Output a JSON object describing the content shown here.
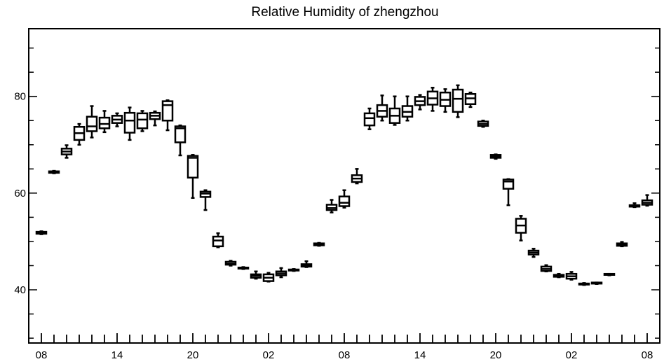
{
  "chart_data": {
    "type": "box",
    "title": "Relative Humidity of zhengzhou",
    "xlabel": "",
    "ylabel": "",
    "ylim": [
      29,
      94
    ],
    "yticks": [
      40,
      60,
      80
    ],
    "x_tick_labels": [
      "08",
      "14",
      "20",
      "02",
      "08",
      "14",
      "20",
      "02",
      "08"
    ],
    "x_tick_hour_index": [
      0,
      6,
      12,
      18,
      24,
      30,
      36,
      42,
      48
    ],
    "x_range_index": [
      -1,
      49
    ],
    "grid": false,
    "box_color": "#000000",
    "boxes": [
      {
        "x": 0,
        "whisker_low": 51.5,
        "q1": 51.6,
        "median": 51.8,
        "q3": 52.0,
        "whisker_high": 52.1
      },
      {
        "x": 1,
        "whisker_low": 64.1,
        "q1": 64.2,
        "median": 64.3,
        "q3": 64.5,
        "whisker_high": 64.6
      },
      {
        "x": 2,
        "whisker_low": 67.3,
        "q1": 68.0,
        "median": 68.6,
        "q3": 69.2,
        "whisker_high": 69.9
      },
      {
        "x": 3,
        "whisker_low": 70.0,
        "q1": 71.0,
        "median": 72.4,
        "q3": 73.7,
        "whisker_high": 74.3
      },
      {
        "x": 4,
        "whisker_low": 71.5,
        "q1": 72.8,
        "median": 73.8,
        "q3": 75.8,
        "whisker_high": 78.0
      },
      {
        "x": 5,
        "whisker_low": 72.6,
        "q1": 73.4,
        "median": 74.3,
        "q3": 75.6,
        "whisker_high": 77.0
      },
      {
        "x": 6,
        "whisker_low": 73.8,
        "q1": 74.5,
        "median": 75.2,
        "q3": 76.0,
        "whisker_high": 76.5
      },
      {
        "x": 7,
        "whisker_low": 71.0,
        "q1": 72.5,
        "median": 75.0,
        "q3": 76.6,
        "whisker_high": 77.7
      },
      {
        "x": 8,
        "whisker_low": 72.8,
        "q1": 73.4,
        "median": 75.2,
        "q3": 76.5,
        "whisker_high": 77.0
      },
      {
        "x": 9,
        "whisker_low": 74.0,
        "q1": 75.3,
        "median": 76.0,
        "q3": 76.6,
        "whisker_high": 76.9
      },
      {
        "x": 10,
        "whisker_low": 73.0,
        "q1": 75.0,
        "median": 78.2,
        "q3": 79.0,
        "whisker_high": 79.2
      },
      {
        "x": 11,
        "whisker_low": 67.8,
        "q1": 70.5,
        "median": 73.4,
        "q3": 73.8,
        "whisker_high": 74.0
      },
      {
        "x": 12,
        "whisker_low": 59.0,
        "q1": 63.2,
        "median": 67.3,
        "q3": 67.7,
        "whisker_high": 67.9
      },
      {
        "x": 13,
        "whisker_low": 56.5,
        "q1": 59.2,
        "median": 59.9,
        "q3": 60.3,
        "whisker_high": 60.6
      },
      {
        "x": 14,
        "whisker_low": 48.8,
        "q1": 49.0,
        "median": 50.2,
        "q3": 51.0,
        "whisker_high": 51.7
      },
      {
        "x": 15,
        "whisker_low": 45.0,
        "q1": 45.2,
        "median": 45.4,
        "q3": 45.8,
        "whisker_high": 46.0
      },
      {
        "x": 16,
        "whisker_low": 44.3,
        "q1": 44.4,
        "median": 44.5,
        "q3": 44.6,
        "whisker_high": 44.7
      },
      {
        "x": 17,
        "whisker_low": 42.3,
        "q1": 42.5,
        "median": 42.9,
        "q3": 43.2,
        "whisker_high": 43.8
      },
      {
        "x": 18,
        "whisker_low": 41.7,
        "q1": 41.8,
        "median": 42.5,
        "q3": 43.2,
        "whisker_high": 43.5
      },
      {
        "x": 19,
        "whisker_low": 42.6,
        "q1": 43.0,
        "median": 43.4,
        "q3": 43.8,
        "whisker_high": 44.5
      },
      {
        "x": 20,
        "whisker_low": 43.9,
        "q1": 44.0,
        "median": 44.1,
        "q3": 44.2,
        "whisker_high": 44.3
      },
      {
        "x": 21,
        "whisker_low": 44.7,
        "q1": 44.8,
        "median": 45.0,
        "q3": 45.3,
        "whisker_high": 45.9
      },
      {
        "x": 22,
        "whisker_low": 49.1,
        "q1": 49.2,
        "median": 49.4,
        "q3": 49.6,
        "whisker_high": 49.7
      },
      {
        "x": 23,
        "whisker_low": 56.0,
        "q1": 56.5,
        "median": 56.9,
        "q3": 57.6,
        "whisker_high": 58.6
      },
      {
        "x": 24,
        "whisker_low": 57.0,
        "q1": 57.3,
        "median": 58.0,
        "q3": 59.3,
        "whisker_high": 60.6
      },
      {
        "x": 25,
        "whisker_low": 62.0,
        "q1": 62.3,
        "median": 63.0,
        "q3": 63.7,
        "whisker_high": 65.0
      },
      {
        "x": 26,
        "whisker_low": 73.2,
        "q1": 74.0,
        "median": 75.5,
        "q3": 76.5,
        "whisker_high": 77.5
      },
      {
        "x": 27,
        "whisker_low": 75.0,
        "q1": 75.8,
        "median": 77.0,
        "q3": 78.2,
        "whisker_high": 80.2
      },
      {
        "x": 28,
        "whisker_low": 74.1,
        "q1": 74.5,
        "median": 76.0,
        "q3": 77.5,
        "whisker_high": 80.0
      },
      {
        "x": 29,
        "whisker_low": 75.0,
        "q1": 75.8,
        "median": 76.8,
        "q3": 78.0,
        "whisker_high": 80.0
      },
      {
        "x": 30,
        "whisker_low": 77.3,
        "q1": 78.2,
        "median": 79.0,
        "q3": 79.9,
        "whisker_high": 80.3
      },
      {
        "x": 31,
        "whisker_low": 77.0,
        "q1": 78.3,
        "median": 79.6,
        "q3": 81.0,
        "whisker_high": 81.8
      },
      {
        "x": 32,
        "whisker_low": 76.8,
        "q1": 78.0,
        "median": 79.3,
        "q3": 80.8,
        "whisker_high": 81.5
      },
      {
        "x": 33,
        "whisker_low": 75.7,
        "q1": 76.8,
        "median": 79.5,
        "q3": 81.4,
        "whisker_high": 82.3
      },
      {
        "x": 34,
        "whisker_low": 77.8,
        "q1": 78.4,
        "median": 79.6,
        "q3": 80.5,
        "whisker_high": 80.8
      },
      {
        "x": 35,
        "whisker_low": 73.7,
        "q1": 73.9,
        "median": 74.3,
        "q3": 74.8,
        "whisker_high": 75.0
      },
      {
        "x": 36,
        "whisker_low": 67.1,
        "q1": 67.3,
        "median": 67.6,
        "q3": 67.9,
        "whisker_high": 68.0
      },
      {
        "x": 37,
        "whisker_low": 57.5,
        "q1": 60.9,
        "median": 62.4,
        "q3": 62.8,
        "whisker_high": 62.9
      },
      {
        "x": 38,
        "whisker_low": 50.2,
        "q1": 51.8,
        "median": 53.3,
        "q3": 54.7,
        "whisker_high": 55.3
      },
      {
        "x": 39,
        "whisker_low": 46.8,
        "q1": 47.3,
        "median": 47.7,
        "q3": 48.1,
        "whisker_high": 48.5
      },
      {
        "x": 40,
        "whisker_low": 43.8,
        "q1": 43.9,
        "median": 44.3,
        "q3": 44.8,
        "whisker_high": 45.1
      },
      {
        "x": 41,
        "whisker_low": 42.6,
        "q1": 42.7,
        "median": 42.9,
        "q3": 43.1,
        "whisker_high": 43.3
      },
      {
        "x": 42,
        "whisker_low": 42.1,
        "q1": 42.3,
        "median": 42.8,
        "q3": 43.3,
        "whisker_high": 43.7
      },
      {
        "x": 43,
        "whisker_low": 41.0,
        "q1": 41.1,
        "median": 41.2,
        "q3": 41.3,
        "whisker_high": 41.4
      },
      {
        "x": 44,
        "whisker_low": 41.2,
        "q1": 41.3,
        "median": 41.4,
        "q3": 41.5,
        "whisker_high": 41.5
      },
      {
        "x": 45,
        "whisker_low": 43.0,
        "q1": 43.1,
        "median": 43.2,
        "q3": 43.3,
        "whisker_high": 43.3
      },
      {
        "x": 46,
        "whisker_low": 49.0,
        "q1": 49.1,
        "median": 49.3,
        "q3": 49.6,
        "whisker_high": 49.9
      },
      {
        "x": 47,
        "whisker_low": 57.1,
        "q1": 57.2,
        "median": 57.3,
        "q3": 57.5,
        "whisker_high": 57.9
      },
      {
        "x": 48,
        "whisker_low": 57.4,
        "q1": 57.6,
        "median": 58.0,
        "q3": 58.5,
        "whisker_high": 59.6
      }
    ]
  }
}
